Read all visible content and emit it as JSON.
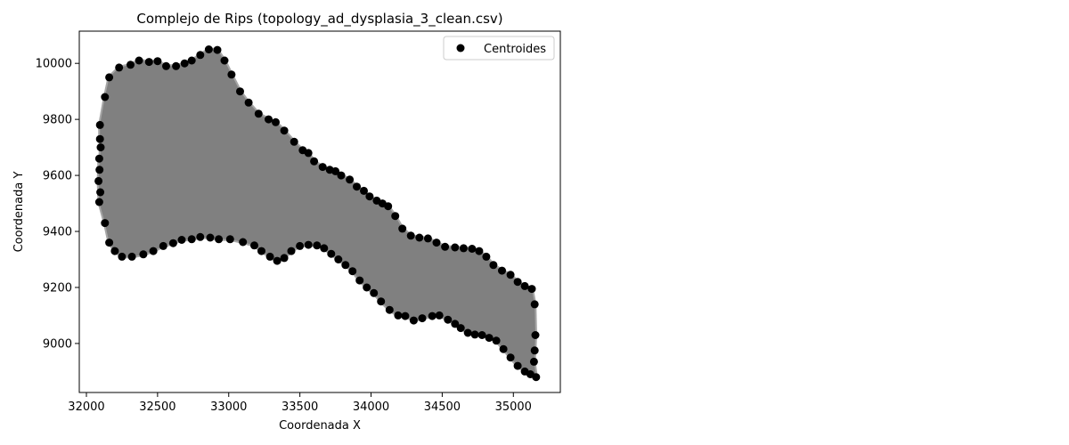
{
  "chart_data": {
    "type": "scatter",
    "title": "Complejo de Rips (topology_ad_dysplasia_3_clean.csv)",
    "xlabel": "Coordenada X",
    "ylabel": "Coordenada Y",
    "xlim": [
      31950,
      35330
    ],
    "ylim": [
      8825,
      10115
    ],
    "x_ticks": [
      32000,
      32500,
      33000,
      33500,
      34000,
      34500,
      35000
    ],
    "y_ticks": [
      9000,
      9200,
      9400,
      9600,
      9800,
      10000
    ],
    "grid": false,
    "legend": {
      "position": "top-right",
      "entries": [
        "Centroides"
      ]
    },
    "colors": {
      "points": "#000000",
      "complex_fill": "#808080",
      "complex_edges": "#a6a6a6"
    },
    "series": [
      {
        "name": "Centroides",
        "role": "points",
        "upper_boundary": [
          [
            32095,
            9780
          ],
          [
            32130,
            9880
          ],
          [
            32160,
            9950
          ],
          [
            32230,
            9985
          ],
          [
            32310,
            9995
          ],
          [
            32370,
            10010
          ],
          [
            32440,
            10005
          ],
          [
            32500,
            10008
          ],
          [
            32560,
            9990
          ],
          [
            32630,
            9990
          ],
          [
            32690,
            10000
          ],
          [
            32740,
            10010
          ],
          [
            32800,
            10030
          ],
          [
            32860,
            10050
          ],
          [
            32920,
            10048
          ],
          [
            32970,
            10010
          ],
          [
            33020,
            9960
          ],
          [
            33080,
            9900
          ],
          [
            33140,
            9860
          ],
          [
            33210,
            9820
          ],
          [
            33280,
            9800
          ],
          [
            33330,
            9790
          ],
          [
            33390,
            9760
          ],
          [
            33460,
            9720
          ],
          [
            33520,
            9690
          ],
          [
            33560,
            9680
          ],
          [
            33600,
            9650
          ],
          [
            33660,
            9630
          ],
          [
            33710,
            9620
          ],
          [
            33750,
            9615
          ],
          [
            33790,
            9600
          ],
          [
            33850,
            9585
          ],
          [
            33900,
            9560
          ],
          [
            33950,
            9545
          ],
          [
            33990,
            9525
          ],
          [
            34040,
            9510
          ],
          [
            34080,
            9500
          ],
          [
            34120,
            9490
          ],
          [
            34170,
            9455
          ],
          [
            34220,
            9410
          ],
          [
            34280,
            9385
          ],
          [
            34340,
            9378
          ],
          [
            34400,
            9375
          ],
          [
            34460,
            9360
          ],
          [
            34520,
            9345
          ],
          [
            34590,
            9343
          ],
          [
            34650,
            9340
          ],
          [
            34710,
            9338
          ],
          [
            34760,
            9330
          ],
          [
            34810,
            9310
          ],
          [
            34860,
            9280
          ],
          [
            34920,
            9260
          ],
          [
            34980,
            9245
          ],
          [
            35030,
            9220
          ],
          [
            35080,
            9205
          ],
          [
            35130,
            9195
          ],
          [
            35150,
            9140
          ]
        ],
        "lower_boundary": [
          [
            32090,
            9660
          ],
          [
            32085,
            9580
          ],
          [
            32090,
            9505
          ],
          [
            32130,
            9430
          ],
          [
            32160,
            9360
          ],
          [
            32200,
            9330
          ],
          [
            32250,
            9310
          ],
          [
            32320,
            9310
          ],
          [
            32400,
            9318
          ],
          [
            32470,
            9330
          ],
          [
            32540,
            9348
          ],
          [
            32610,
            9358
          ],
          [
            32670,
            9370
          ],
          [
            32740,
            9372
          ],
          [
            32800,
            9380
          ],
          [
            32870,
            9378
          ],
          [
            32930,
            9372
          ],
          [
            33010,
            9372
          ],
          [
            33100,
            9362
          ],
          [
            33180,
            9350
          ],
          [
            33230,
            9330
          ],
          [
            33290,
            9310
          ],
          [
            33340,
            9295
          ],
          [
            33390,
            9305
          ],
          [
            33440,
            9330
          ],
          [
            33500,
            9348
          ],
          [
            33560,
            9352
          ],
          [
            33620,
            9350
          ],
          [
            33670,
            9340
          ],
          [
            33720,
            9320
          ],
          [
            33770,
            9300
          ],
          [
            33820,
            9280
          ],
          [
            33870,
            9258
          ],
          [
            33920,
            9225
          ],
          [
            33970,
            9200
          ],
          [
            34020,
            9180
          ],
          [
            34070,
            9150
          ],
          [
            34130,
            9120
          ],
          [
            34190,
            9100
          ],
          [
            34240,
            9098
          ],
          [
            34300,
            9082
          ],
          [
            34360,
            9090
          ],
          [
            34430,
            9098
          ],
          [
            34480,
            9100
          ],
          [
            34540,
            9085
          ],
          [
            34590,
            9070
          ],
          [
            34630,
            9055
          ],
          [
            34680,
            9038
          ],
          [
            34730,
            9032
          ],
          [
            34780,
            9030
          ],
          [
            34830,
            9020
          ],
          [
            34880,
            9010
          ],
          [
            34930,
            8980
          ],
          [
            34980,
            8950
          ],
          [
            35030,
            8920
          ],
          [
            35080,
            8900
          ],
          [
            35120,
            8890
          ],
          [
            35160,
            8880
          ],
          [
            35145,
            8935
          ],
          [
            35150,
            8975
          ],
          [
            35155,
            9030
          ]
        ],
        "left_boundary": [
          [
            32095,
            9730
          ],
          [
            32100,
            9700
          ],
          [
            32092,
            9620
          ],
          [
            32098,
            9540
          ]
        ]
      }
    ]
  }
}
